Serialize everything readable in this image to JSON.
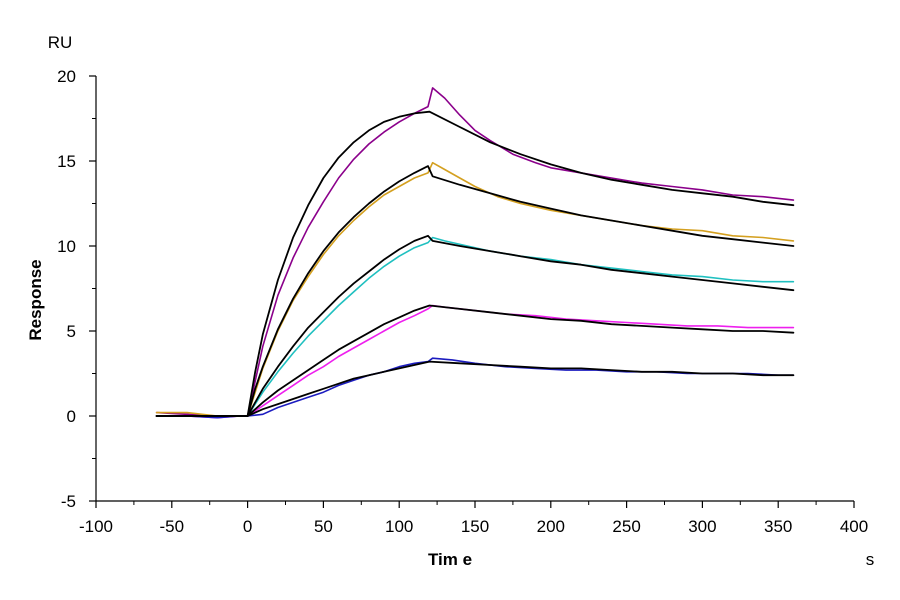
{
  "chart_data": {
    "type": "line",
    "title": "",
    "xlabel": "Tim e",
    "ylabel": "Response",
    "x_unit": "s",
    "y_unit": "RU",
    "xlim": [
      -100,
      400
    ],
    "ylim": [
      -5,
      20
    ],
    "x_ticks": [
      -100,
      -50,
      0,
      50,
      100,
      150,
      200,
      250,
      300,
      350,
      400
    ],
    "x_tick_labels": [
      "-100",
      "-50",
      "0",
      "50",
      "100",
      "150",
      "200",
      "250",
      "300",
      "350",
      "400"
    ],
    "y_ticks": [
      -5,
      0,
      5,
      10,
      15,
      20
    ],
    "y_tick_labels": [
      "-5",
      "0",
      "5",
      "10",
      "15",
      "20"
    ],
    "grid": false,
    "legend": "none",
    "series": [
      {
        "name": "conc-1-data",
        "color": "#8b008b",
        "kind": "data",
        "x": [
          -60,
          -40,
          -20,
          -5,
          0,
          10,
          20,
          30,
          40,
          50,
          60,
          70,
          80,
          90,
          100,
          110,
          119,
          122,
          130,
          140,
          150,
          160,
          175,
          190,
          200,
          220,
          240,
          260,
          280,
          300,
          320,
          340,
          360
        ],
        "y": [
          0.2,
          0.1,
          0.0,
          0.0,
          0.0,
          4.1,
          7.1,
          9.3,
          11.1,
          12.6,
          14.0,
          15.1,
          16.0,
          16.7,
          17.3,
          17.8,
          18.2,
          19.3,
          18.7,
          17.7,
          16.8,
          16.2,
          15.4,
          14.9,
          14.6,
          14.3,
          14.0,
          13.7,
          13.5,
          13.3,
          13.0,
          12.9,
          12.7
        ]
      },
      {
        "name": "conc-2-data",
        "color": "#d4a020",
        "kind": "data",
        "x": [
          -60,
          -40,
          -20,
          -5,
          0,
          10,
          20,
          30,
          40,
          50,
          60,
          70,
          80,
          90,
          100,
          110,
          119,
          122,
          130,
          140,
          150,
          165,
          180,
          200,
          220,
          240,
          260,
          280,
          300,
          320,
          340,
          360
        ],
        "y": [
          0.2,
          0.2,
          0.0,
          0.0,
          0.0,
          2.8,
          5.0,
          6.8,
          8.2,
          9.5,
          10.6,
          11.5,
          12.3,
          13.0,
          13.5,
          14.0,
          14.3,
          14.9,
          14.5,
          14.0,
          13.5,
          12.9,
          12.5,
          12.1,
          11.8,
          11.5,
          11.2,
          11.0,
          10.9,
          10.6,
          10.5,
          10.3
        ]
      },
      {
        "name": "conc-3-data",
        "color": "#20c0c0",
        "kind": "data",
        "x": [
          -60,
          -40,
          -20,
          -5,
          0,
          10,
          20,
          30,
          40,
          50,
          60,
          70,
          80,
          90,
          100,
          110,
          119,
          122,
          130,
          145,
          160,
          180,
          200,
          220,
          240,
          260,
          280,
          300,
          320,
          340,
          360
        ],
        "y": [
          0.0,
          0.0,
          0.0,
          0.0,
          0.0,
          1.4,
          2.6,
          3.7,
          4.7,
          5.6,
          6.5,
          7.3,
          8.1,
          8.8,
          9.4,
          9.9,
          10.2,
          10.5,
          10.3,
          10.0,
          9.7,
          9.4,
          9.2,
          8.9,
          8.7,
          8.5,
          8.3,
          8.2,
          8.0,
          7.9,
          7.9
        ]
      },
      {
        "name": "conc-4-data",
        "color": "#ee20ee",
        "kind": "data",
        "x": [
          -60,
          -40,
          -20,
          -5,
          0,
          10,
          20,
          30,
          40,
          50,
          60,
          70,
          80,
          90,
          100,
          110,
          119,
          122,
          130,
          150,
          170,
          190,
          210,
          230,
          250,
          270,
          290,
          310,
          330,
          350,
          360
        ],
        "y": [
          0.0,
          0.0,
          -0.1,
          0.0,
          0.0,
          0.6,
          1.2,
          1.8,
          2.4,
          2.9,
          3.5,
          4.0,
          4.5,
          5.0,
          5.5,
          5.9,
          6.3,
          6.5,
          6.4,
          6.2,
          6.0,
          5.9,
          5.7,
          5.6,
          5.5,
          5.4,
          5.3,
          5.3,
          5.2,
          5.2,
          5.2
        ]
      },
      {
        "name": "conc-5-data",
        "color": "#1c1cc0",
        "kind": "data",
        "x": [
          -60,
          -40,
          -20,
          -5,
          0,
          10,
          20,
          30,
          40,
          50,
          60,
          70,
          80,
          90,
          100,
          110,
          119,
          122,
          135,
          150,
          170,
          190,
          210,
          230,
          250,
          270,
          290,
          310,
          330,
          350,
          360
        ],
        "y": [
          0.0,
          0.0,
          -0.1,
          0.0,
          0.0,
          0.1,
          0.5,
          0.8,
          1.1,
          1.4,
          1.8,
          2.1,
          2.4,
          2.6,
          2.9,
          3.1,
          3.2,
          3.4,
          3.3,
          3.1,
          2.9,
          2.8,
          2.7,
          2.7,
          2.6,
          2.6,
          2.5,
          2.5,
          2.5,
          2.4,
          2.4
        ]
      },
      {
        "name": "conc-1-fit",
        "color": "#000000",
        "kind": "fit",
        "x": [
          -60,
          0,
          5,
          10,
          20,
          30,
          40,
          50,
          60,
          70,
          80,
          90,
          100,
          110,
          120,
          140,
          160,
          180,
          200,
          220,
          240,
          260,
          280,
          300,
          320,
          340,
          360
        ],
        "y": [
          0.0,
          0.0,
          2.6,
          4.8,
          8.0,
          10.5,
          12.4,
          14.0,
          15.2,
          16.1,
          16.8,
          17.3,
          17.6,
          17.8,
          17.9,
          17.0,
          16.1,
          15.4,
          14.8,
          14.3,
          13.9,
          13.6,
          13.3,
          13.1,
          12.9,
          12.6,
          12.4
        ]
      },
      {
        "name": "conc-2-fit",
        "color": "#000000",
        "kind": "fit",
        "x": [
          -60,
          0,
          5,
          10,
          20,
          30,
          40,
          50,
          60,
          70,
          80,
          90,
          100,
          110,
          119,
          122,
          140,
          160,
          180,
          200,
          220,
          240,
          260,
          280,
          300,
          320,
          340,
          360
        ],
        "y": [
          0.0,
          0.0,
          1.6,
          2.9,
          5.1,
          6.9,
          8.4,
          9.7,
          10.8,
          11.7,
          12.5,
          13.2,
          13.8,
          14.3,
          14.7,
          14.1,
          13.6,
          13.1,
          12.6,
          12.2,
          11.8,
          11.5,
          11.2,
          10.9,
          10.6,
          10.4,
          10.2,
          10.0
        ]
      },
      {
        "name": "conc-3-fit",
        "color": "#000000",
        "kind": "fit",
        "x": [
          -60,
          0,
          10,
          20,
          30,
          40,
          50,
          60,
          70,
          80,
          90,
          100,
          110,
          119,
          122,
          140,
          160,
          180,
          200,
          220,
          240,
          260,
          280,
          300,
          320,
          340,
          360
        ],
        "y": [
          0.0,
          0.0,
          1.6,
          2.9,
          4.1,
          5.2,
          6.1,
          7.0,
          7.8,
          8.5,
          9.2,
          9.8,
          10.3,
          10.6,
          10.3,
          10.0,
          9.7,
          9.4,
          9.1,
          8.9,
          8.6,
          8.4,
          8.2,
          8.0,
          7.8,
          7.6,
          7.4
        ]
      },
      {
        "name": "conc-4-fit",
        "color": "#000000",
        "kind": "fit",
        "x": [
          -60,
          0,
          10,
          20,
          30,
          40,
          50,
          60,
          70,
          80,
          90,
          100,
          110,
          120,
          140,
          160,
          180,
          200,
          220,
          240,
          260,
          280,
          300,
          320,
          340,
          360
        ],
        "y": [
          0.0,
          0.0,
          0.8,
          1.5,
          2.1,
          2.7,
          3.3,
          3.9,
          4.4,
          4.9,
          5.4,
          5.8,
          6.2,
          6.5,
          6.3,
          6.1,
          5.9,
          5.7,
          5.6,
          5.4,
          5.3,
          5.2,
          5.1,
          5.0,
          5.0,
          4.9
        ]
      },
      {
        "name": "conc-5-fit",
        "color": "#000000",
        "kind": "fit",
        "x": [
          -60,
          0,
          10,
          20,
          30,
          40,
          50,
          60,
          70,
          80,
          90,
          100,
          110,
          120,
          140,
          160,
          180,
          200,
          220,
          240,
          260,
          280,
          300,
          320,
          340,
          360
        ],
        "y": [
          0.0,
          0.0,
          0.4,
          0.7,
          1.0,
          1.3,
          1.6,
          1.9,
          2.2,
          2.4,
          2.6,
          2.8,
          3.0,
          3.2,
          3.1,
          3.0,
          2.9,
          2.8,
          2.8,
          2.7,
          2.6,
          2.6,
          2.5,
          2.5,
          2.4,
          2.4
        ]
      }
    ]
  }
}
